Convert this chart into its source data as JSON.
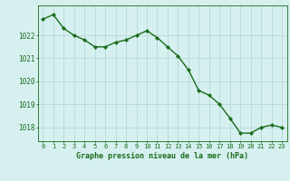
{
  "hours": [
    0,
    1,
    2,
    3,
    4,
    5,
    6,
    7,
    8,
    9,
    10,
    11,
    12,
    13,
    14,
    15,
    16,
    17,
    18,
    19,
    20,
    21,
    22,
    23
  ],
  "pressure": [
    1022.7,
    1022.9,
    1022.3,
    1022.0,
    1021.8,
    1021.5,
    1021.5,
    1021.7,
    1021.8,
    1022.0,
    1022.2,
    1021.9,
    1021.5,
    1021.1,
    1020.5,
    1019.6,
    1019.4,
    1019.0,
    1018.4,
    1017.75,
    1017.75,
    1018.0,
    1018.1,
    1018.0
  ],
  "line_color": "#1a6b1a",
  "marker": "D",
  "marker_size": 2.2,
  "bg_color": "#d6f0f0",
  "grid_color": "#b8d8d8",
  "xlabel": "Graphe pression niveau de la mer (hPa)",
  "xlabel_color": "#1a6b1a",
  "tick_color": "#1a6b1a",
  "ylim": [
    1017.4,
    1023.3
  ],
  "yticks": [
    1018,
    1019,
    1020,
    1021,
    1022
  ],
  "xticks": [
    0,
    1,
    2,
    3,
    4,
    5,
    6,
    7,
    8,
    9,
    10,
    11,
    12,
    13,
    14,
    15,
    16,
    17,
    18,
    19,
    20,
    21,
    22,
    23
  ],
  "tick_fontsize": 5.0,
  "ytick_fontsize": 5.5,
  "xlabel_fontsize": 6.0,
  "linewidth": 1.0
}
